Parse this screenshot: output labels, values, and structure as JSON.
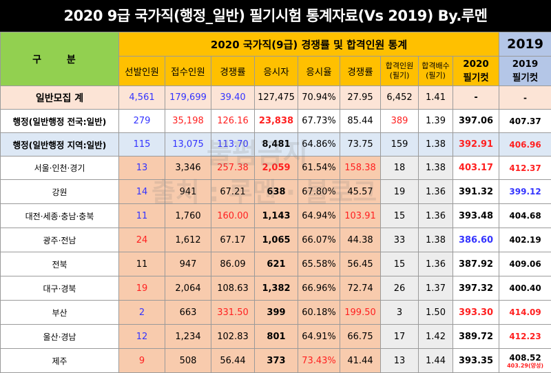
{
  "title": "2020 9급 국가직(행정_일반) 필기시험 통계자료(Vs 2019) By.루멘",
  "header": {
    "gubun": "구   분",
    "group_2020": "2020 국가직(9급) 경쟁률 및 합격인원 통계",
    "group_2019": "2019",
    "columns": [
      "선발인원",
      "접수인원",
      "경쟁률",
      "응시자",
      "응시율",
      "경쟁률"
    ],
    "col_pass_line1": "합격인원",
    "col_pass_line2": "(필기)",
    "col_ratio_line1": "합격배수",
    "col_ratio_line2": "(필기)",
    "col_cut2020_line1": "2020",
    "col_cut2020_line2": "필기컷",
    "col_cut2019_line1": "2019",
    "col_cut2019_line2": "필기컷"
  },
  "rows": [
    {
      "name": "일반모집 계",
      "selected": "4,561",
      "applicants": "179,699",
      "rate1": "39.40",
      "examinees": "127,475",
      "attend": "70.94%",
      "rate2": "27.95",
      "passed": "6,452",
      "ratio": "1.41",
      "cut2020": "-",
      "cut2019": "-",
      "cut2019_sub": ""
    },
    {
      "name": "행정(일반행정 전국:일반)",
      "selected": "279",
      "applicants": "35,198",
      "rate1": "126.16",
      "examinees": "23,838",
      "attend": "67.73%",
      "rate2": "85.44",
      "passed": "389",
      "ratio": "1.39",
      "cut2020": "397.06",
      "cut2019": "407.37",
      "cut2019_sub": ""
    },
    {
      "name": "행정(일반행정 지역:일반)",
      "selected": "115",
      "applicants": "13,075",
      "rate1": "113.70",
      "examinees": "8,481",
      "attend": "64.86%",
      "rate2": "73.75",
      "passed": "159",
      "ratio": "1.38",
      "cut2020": "392.91",
      "cut2019": "406.96",
      "cut2019_sub": ""
    },
    {
      "name": "서울·인천·경기",
      "selected": "13",
      "applicants": "3,346",
      "rate1": "257.38",
      "examinees": "2,059",
      "attend": "61.54%",
      "rate2": "158.38",
      "passed": "18",
      "ratio": "1.38",
      "cut2020": "403.17",
      "cut2019": "412.37",
      "cut2019_sub": ""
    },
    {
      "name": "강원",
      "selected": "14",
      "applicants": "941",
      "rate1": "67.21",
      "examinees": "638",
      "attend": "67.80%",
      "rate2": "45.57",
      "passed": "19",
      "ratio": "1.36",
      "cut2020": "391.32",
      "cut2019": "399.12",
      "cut2019_sub": ""
    },
    {
      "name": "대전·세종·충남·충북",
      "selected": "11",
      "applicants": "1,760",
      "rate1": "160.00",
      "examinees": "1,143",
      "attend": "64.94%",
      "rate2": "103.91",
      "passed": "15",
      "ratio": "1.36",
      "cut2020": "393.48",
      "cut2019": "404.68",
      "cut2019_sub": ""
    },
    {
      "name": "광주·전남",
      "selected": "24",
      "applicants": "1,612",
      "rate1": "67.17",
      "examinees": "1,065",
      "attend": "66.07%",
      "rate2": "44.38",
      "passed": "33",
      "ratio": "1.38",
      "cut2020": "386.60",
      "cut2019": "402.19",
      "cut2019_sub": ""
    },
    {
      "name": "전북",
      "selected": "11",
      "applicants": "947",
      "rate1": "86.09",
      "examinees": "621",
      "attend": "65.58%",
      "rate2": "56.45",
      "passed": "15",
      "ratio": "1.36",
      "cut2020": "387.92",
      "cut2019": "409.06",
      "cut2019_sub": ""
    },
    {
      "name": "대구·경북",
      "selected": "19",
      "applicants": "2,064",
      "rate1": "108.63",
      "examinees": "1,382",
      "attend": "66.96%",
      "rate2": "72.74",
      "passed": "26",
      "ratio": "1.37",
      "cut2020": "397.32",
      "cut2019": "400.40",
      "cut2019_sub": ""
    },
    {
      "name": "부산",
      "selected": "2",
      "applicants": "663",
      "rate1": "331.50",
      "examinees": "399",
      "attend": "60.18%",
      "rate2": "199.50",
      "passed": "3",
      "ratio": "1.50",
      "cut2020": "393.30",
      "cut2019": "414.09",
      "cut2019_sub": ""
    },
    {
      "name": "울산·경남",
      "selected": "12",
      "applicants": "1,234",
      "rate1": "102.83",
      "examinees": "801",
      "attend": "64.91%",
      "rate2": "66.75",
      "passed": "17",
      "ratio": "1.42",
      "cut2020": "389.72",
      "cut2019": "412.23",
      "cut2019_sub": ""
    },
    {
      "name": "제주",
      "selected": "9",
      "applicants": "508",
      "rate1": "56.44",
      "examinees": "373",
      "attend": "73.43%",
      "rate2": "41.44",
      "passed": "13",
      "ratio": "1.44",
      "cut2020": "393.35",
      "cut2019": "408.52",
      "cut2019_sub": "403.29(양성)"
    }
  ],
  "watermark": {
    "line1": "불펌금지",
    "line2": "출처 : 루멘 · 블로그"
  },
  "colors": {
    "title_bg": "#000000",
    "gubun_bg": "#92d050",
    "header_2020_bg": "#ffc000",
    "header_2019_bg": "#b4c6e7",
    "total_row_bg": "#fce4d6",
    "region_bg": "#f8cbad",
    "blue_text": "#3333ff",
    "red_text": "#ff2020"
  }
}
